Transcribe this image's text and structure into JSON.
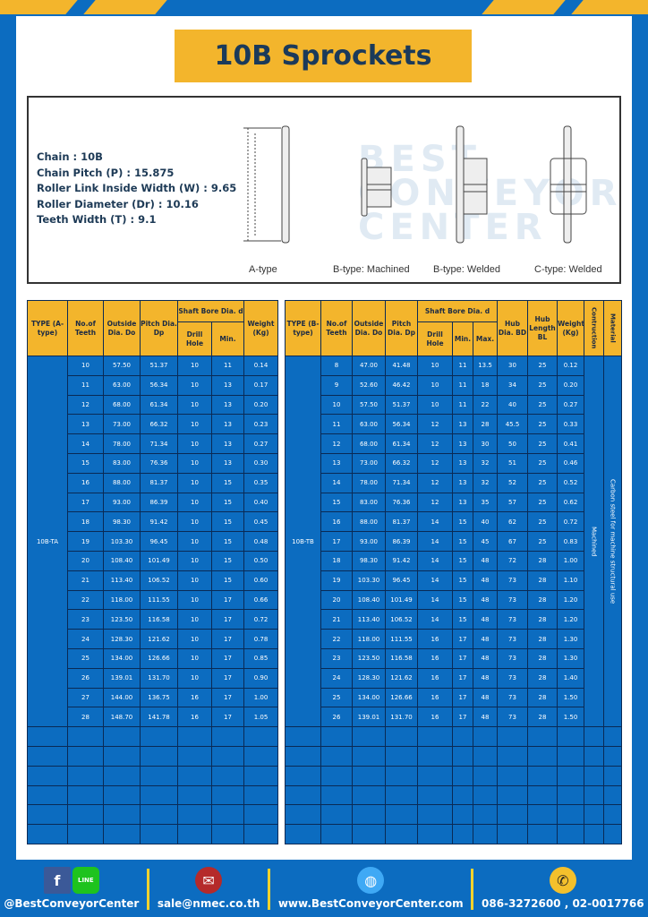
{
  "title": "10B Sprockets",
  "specs": [
    "Chain  :  10B",
    "Chain Pitch (P)  :  15.875",
    "Roller Link Inside Width (W) : 9.65",
    "Roller Diameter (Dr) : 10.16",
    "Teeth Width (T)  :  9.1"
  ],
  "diagram_labels": [
    "A-type",
    "B-type: Machined",
    "B-type: Welded",
    "C-type: Welded"
  ],
  "watermark": "BEST CONVEYOR CENTER",
  "colors": {
    "blue": "#0c6cc0",
    "yellow": "#f3b52c",
    "title_text": "#1b3a5a"
  },
  "table_a": {
    "headers": {
      "type": "TYPE (A-type)",
      "teeth": "No.of Teeth",
      "do": "Outside Dia. Do",
      "dp": "Pitch Dia. Dp",
      "bore": "Shaft Bore Dia. d",
      "drill": "Drill Hole",
      "min": "Min.",
      "weight": "Weight (Kg)"
    },
    "type_label": "10B-TA",
    "rows": [
      [
        "10",
        "57.50",
        "51.37",
        "10",
        "11",
        "0.14"
      ],
      [
        "11",
        "63.00",
        "56.34",
        "10",
        "13",
        "0.17"
      ],
      [
        "12",
        "68.00",
        "61.34",
        "10",
        "13",
        "0.20"
      ],
      [
        "13",
        "73.00",
        "66.32",
        "10",
        "13",
        "0.23"
      ],
      [
        "14",
        "78.00",
        "71.34",
        "10",
        "13",
        "0.27"
      ],
      [
        "15",
        "83.00",
        "76.36",
        "10",
        "13",
        "0.30"
      ],
      [
        "16",
        "88.00",
        "81.37",
        "10",
        "15",
        "0.35"
      ],
      [
        "17",
        "93.00",
        "86.39",
        "10",
        "15",
        "0.40"
      ],
      [
        "18",
        "98.30",
        "91.42",
        "10",
        "15",
        "0.45"
      ],
      [
        "19",
        "103.30",
        "96.45",
        "10",
        "15",
        "0.48"
      ],
      [
        "20",
        "108.40",
        "101.49",
        "10",
        "15",
        "0.50"
      ],
      [
        "21",
        "113.40",
        "106.52",
        "10",
        "15",
        "0.60"
      ],
      [
        "22",
        "118.00",
        "111.55",
        "10",
        "17",
        "0.66"
      ],
      [
        "23",
        "123.50",
        "116.58",
        "10",
        "17",
        "0.72"
      ],
      [
        "24",
        "128.30",
        "121.62",
        "10",
        "17",
        "0.78"
      ],
      [
        "25",
        "134.00",
        "126.66",
        "10",
        "17",
        "0.85"
      ],
      [
        "26",
        "139.01",
        "131.70",
        "10",
        "17",
        "0.90"
      ],
      [
        "27",
        "144.00",
        "136.75",
        "16",
        "17",
        "1.00"
      ],
      [
        "28",
        "148.70",
        "141.78",
        "16",
        "17",
        "1.05"
      ]
    ]
  },
  "table_b": {
    "headers": {
      "type": "TYPE (B-type)",
      "teeth": "No.of Teeth",
      "do": "Outside Dia. Do",
      "dp": "Pitch Dia. Dp",
      "bore": "Shaft Bore Dia. d",
      "drill": "Drill Hole",
      "min": "Min.",
      "max": "Max.",
      "bd": "Hub Dia. BD",
      "bl": "Hub Length BL",
      "weight": "Weight (Kg)",
      "construction": "Contruction",
      "material": "Material"
    },
    "type_label": "10B-TB",
    "construction_value": "Machined",
    "material_value": "Carbon steel  for machine structural use",
    "rows": [
      [
        "8",
        "47.00",
        "41.48",
        "10",
        "11",
        "13.5",
        "30",
        "25",
        "0.12"
      ],
      [
        "9",
        "52.60",
        "46.42",
        "10",
        "11",
        "18",
        "34",
        "25",
        "0.20"
      ],
      [
        "10",
        "57.50",
        "51.37",
        "10",
        "11",
        "22",
        "40",
        "25",
        "0.27"
      ],
      [
        "11",
        "63.00",
        "56.34",
        "12",
        "13",
        "28",
        "45.5",
        "25",
        "0.33"
      ],
      [
        "12",
        "68.00",
        "61.34",
        "12",
        "13",
        "30",
        "50",
        "25",
        "0.41"
      ],
      [
        "13",
        "73.00",
        "66.32",
        "12",
        "13",
        "32",
        "51",
        "25",
        "0.46"
      ],
      [
        "14",
        "78.00",
        "71.34",
        "12",
        "13",
        "32",
        "52",
        "25",
        "0.52"
      ],
      [
        "15",
        "83.00",
        "76.36",
        "12",
        "13",
        "35",
        "57",
        "25",
        "0.62"
      ],
      [
        "16",
        "88.00",
        "81.37",
        "14",
        "15",
        "40",
        "62",
        "25",
        "0.72"
      ],
      [
        "17",
        "93.00",
        "86.39",
        "14",
        "15",
        "45",
        "67",
        "25",
        "0.83"
      ],
      [
        "18",
        "98.30",
        "91.42",
        "14",
        "15",
        "48",
        "72",
        "28",
        "1.00"
      ],
      [
        "19",
        "103.30",
        "96.45",
        "14",
        "15",
        "48",
        "73",
        "28",
        "1.10"
      ],
      [
        "20",
        "108.40",
        "101.49",
        "14",
        "15",
        "48",
        "73",
        "28",
        "1.20"
      ],
      [
        "21",
        "113.40",
        "106.52",
        "14",
        "15",
        "48",
        "73",
        "28",
        "1.20"
      ],
      [
        "22",
        "118.00",
        "111.55",
        "16",
        "17",
        "48",
        "73",
        "28",
        "1.30"
      ],
      [
        "23",
        "123.50",
        "116.58",
        "16",
        "17",
        "48",
        "73",
        "28",
        "1.30"
      ],
      [
        "24",
        "128.30",
        "121.62",
        "16",
        "17",
        "48",
        "73",
        "28",
        "1.40"
      ],
      [
        "25",
        "134.00",
        "126.66",
        "16",
        "17",
        "48",
        "73",
        "28",
        "1.50"
      ],
      [
        "26",
        "139.01",
        "131.70",
        "16",
        "17",
        "48",
        "73",
        "28",
        "1.50"
      ]
    ]
  },
  "footer": {
    "social": "@BestConveyorCenter",
    "line_icon_text": "LINE",
    "email": "sale@nmec.co.th",
    "website": "www.BestConveyorCenter.com",
    "phone": "086-3272600 , 02-0017766"
  }
}
